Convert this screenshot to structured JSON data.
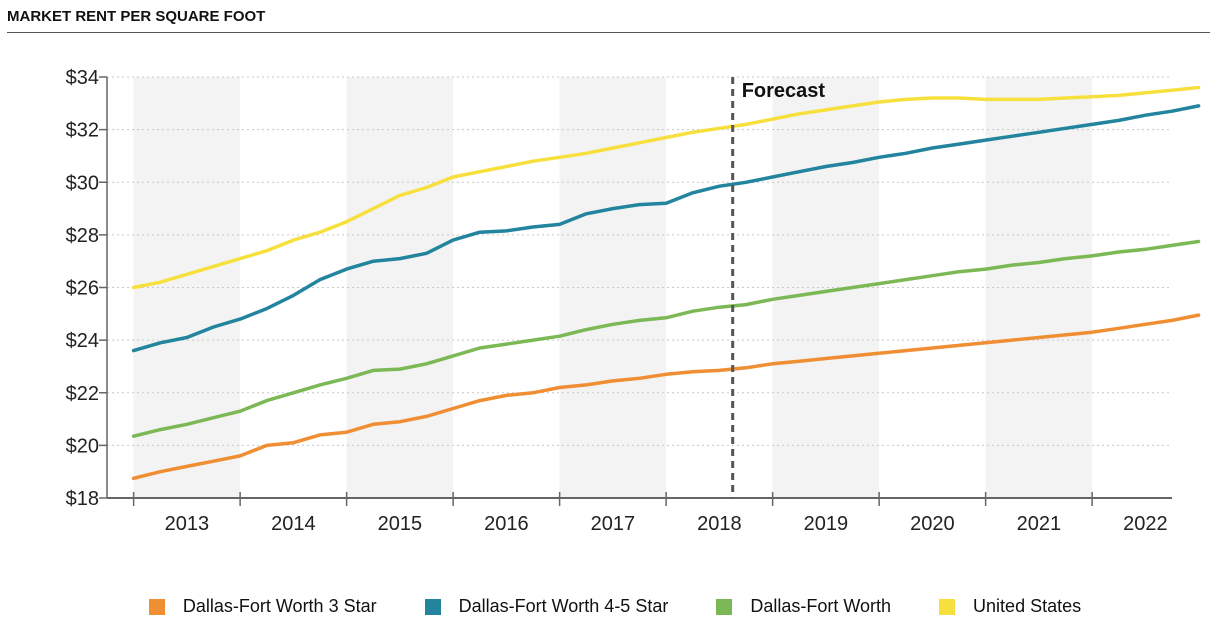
{
  "title": "MARKET RENT PER SQUARE FOOT",
  "chart_data": {
    "type": "line",
    "title": "MARKET RENT PER SQUARE FOOT",
    "xlabel": "",
    "ylabel": "",
    "ylim": [
      18,
      34
    ],
    "y_ticks": [
      "$18",
      "$20",
      "$22",
      "$24",
      "$26",
      "$28",
      "$30",
      "$32",
      "$34"
    ],
    "y_tick_values": [
      18,
      20,
      22,
      24,
      26,
      28,
      30,
      32,
      34
    ],
    "year_labels": [
      "2013",
      "2014",
      "2015",
      "2016",
      "2017",
      "2018",
      "2019",
      "2020",
      "2021",
      "2022"
    ],
    "xlim": [
      2012.625,
      2022.625
    ],
    "forecast_label": "Forecast",
    "forecast_x": 2018.5,
    "legend_position": "bottom",
    "grid": "alternating year bands",
    "series": [
      {
        "name": "Dallas-Fort Worth 3 Star",
        "color": "#f08e34",
        "points": [
          [
            2012.875,
            18.75
          ],
          [
            2013.125,
            19.0
          ],
          [
            2013.375,
            19.2
          ],
          [
            2013.625,
            19.4
          ],
          [
            2013.875,
            19.6
          ],
          [
            2014.125,
            20.0
          ],
          [
            2014.375,
            20.1
          ],
          [
            2014.625,
            20.4
          ],
          [
            2014.875,
            20.5
          ],
          [
            2015.125,
            20.8
          ],
          [
            2015.375,
            20.9
          ],
          [
            2015.625,
            21.1
          ],
          [
            2015.875,
            21.4
          ],
          [
            2016.125,
            21.7
          ],
          [
            2016.375,
            21.9
          ],
          [
            2016.625,
            22.0
          ],
          [
            2016.875,
            22.2
          ],
          [
            2017.125,
            22.3
          ],
          [
            2017.375,
            22.45
          ],
          [
            2017.625,
            22.55
          ],
          [
            2017.875,
            22.7
          ],
          [
            2018.125,
            22.8
          ],
          [
            2018.375,
            22.85
          ],
          [
            2018.625,
            22.95
          ],
          [
            2018.875,
            23.1
          ],
          [
            2019.125,
            23.2
          ],
          [
            2019.375,
            23.3
          ],
          [
            2019.625,
            23.4
          ],
          [
            2019.875,
            23.5
          ],
          [
            2020.125,
            23.6
          ],
          [
            2020.375,
            23.7
          ],
          [
            2020.625,
            23.8
          ],
          [
            2020.875,
            23.9
          ],
          [
            2021.125,
            24.0
          ],
          [
            2021.375,
            24.1
          ],
          [
            2021.625,
            24.2
          ],
          [
            2021.875,
            24.3
          ],
          [
            2022.125,
            24.45
          ],
          [
            2022.375,
            24.6
          ],
          [
            2022.625,
            24.75
          ],
          [
            2022.875,
            24.95
          ]
        ]
      },
      {
        "name": "Dallas-Fort Worth 4-5 Star",
        "color": "#23849e",
        "points": [
          [
            2012.875,
            23.6
          ],
          [
            2013.125,
            23.9
          ],
          [
            2013.375,
            24.1
          ],
          [
            2013.625,
            24.5
          ],
          [
            2013.875,
            24.8
          ],
          [
            2014.125,
            25.2
          ],
          [
            2014.375,
            25.7
          ],
          [
            2014.625,
            26.3
          ],
          [
            2014.875,
            26.7
          ],
          [
            2015.125,
            27.0
          ],
          [
            2015.375,
            27.1
          ],
          [
            2015.625,
            27.3
          ],
          [
            2015.875,
            27.8
          ],
          [
            2016.125,
            28.1
          ],
          [
            2016.375,
            28.15
          ],
          [
            2016.625,
            28.3
          ],
          [
            2016.875,
            28.4
          ],
          [
            2017.125,
            28.8
          ],
          [
            2017.375,
            29.0
          ],
          [
            2017.625,
            29.15
          ],
          [
            2017.875,
            29.2
          ],
          [
            2018.125,
            29.6
          ],
          [
            2018.375,
            29.85
          ],
          [
            2018.625,
            30.0
          ],
          [
            2018.875,
            30.2
          ],
          [
            2019.125,
            30.4
          ],
          [
            2019.375,
            30.6
          ],
          [
            2019.625,
            30.75
          ],
          [
            2019.875,
            30.95
          ],
          [
            2020.125,
            31.1
          ],
          [
            2020.375,
            31.3
          ],
          [
            2020.625,
            31.45
          ],
          [
            2020.875,
            31.6
          ],
          [
            2021.125,
            31.75
          ],
          [
            2021.375,
            31.9
          ],
          [
            2021.625,
            32.05
          ],
          [
            2021.875,
            32.2
          ],
          [
            2022.125,
            32.35
          ],
          [
            2022.375,
            32.55
          ],
          [
            2022.625,
            32.7
          ],
          [
            2022.875,
            32.9
          ]
        ]
      },
      {
        "name": "Dallas-Fort Worth",
        "color": "#7cb956",
        "points": [
          [
            2012.875,
            20.35
          ],
          [
            2013.125,
            20.6
          ],
          [
            2013.375,
            20.8
          ],
          [
            2013.625,
            21.05
          ],
          [
            2013.875,
            21.3
          ],
          [
            2014.125,
            21.7
          ],
          [
            2014.375,
            22.0
          ],
          [
            2014.625,
            22.3
          ],
          [
            2014.875,
            22.55
          ],
          [
            2015.125,
            22.85
          ],
          [
            2015.375,
            22.9
          ],
          [
            2015.625,
            23.1
          ],
          [
            2015.875,
            23.4
          ],
          [
            2016.125,
            23.7
          ],
          [
            2016.375,
            23.85
          ],
          [
            2016.625,
            24.0
          ],
          [
            2016.875,
            24.15
          ],
          [
            2017.125,
            24.4
          ],
          [
            2017.375,
            24.6
          ],
          [
            2017.625,
            24.75
          ],
          [
            2017.875,
            24.85
          ],
          [
            2018.125,
            25.1
          ],
          [
            2018.375,
            25.25
          ],
          [
            2018.625,
            25.35
          ],
          [
            2018.875,
            25.55
          ],
          [
            2019.125,
            25.7
          ],
          [
            2019.375,
            25.85
          ],
          [
            2019.625,
            26.0
          ],
          [
            2019.875,
            26.15
          ],
          [
            2020.125,
            26.3
          ],
          [
            2020.375,
            26.45
          ],
          [
            2020.625,
            26.6
          ],
          [
            2020.875,
            26.7
          ],
          [
            2021.125,
            26.85
          ],
          [
            2021.375,
            26.95
          ],
          [
            2021.625,
            27.1
          ],
          [
            2021.875,
            27.2
          ],
          [
            2022.125,
            27.35
          ],
          [
            2022.375,
            27.45
          ],
          [
            2022.625,
            27.6
          ],
          [
            2022.875,
            27.75
          ]
        ]
      },
      {
        "name": "United States",
        "color": "#f7e03e",
        "points": [
          [
            2012.875,
            26.0
          ],
          [
            2013.125,
            26.2
          ],
          [
            2013.375,
            26.5
          ],
          [
            2013.625,
            26.8
          ],
          [
            2013.875,
            27.1
          ],
          [
            2014.125,
            27.4
          ],
          [
            2014.375,
            27.8
          ],
          [
            2014.625,
            28.1
          ],
          [
            2014.875,
            28.5
          ],
          [
            2015.125,
            29.0
          ],
          [
            2015.375,
            29.5
          ],
          [
            2015.625,
            29.8
          ],
          [
            2015.875,
            30.2
          ],
          [
            2016.125,
            30.4
          ],
          [
            2016.375,
            30.6
          ],
          [
            2016.625,
            30.8
          ],
          [
            2016.875,
            30.95
          ],
          [
            2017.125,
            31.1
          ],
          [
            2017.375,
            31.3
          ],
          [
            2017.625,
            31.5
          ],
          [
            2017.875,
            31.7
          ],
          [
            2018.125,
            31.9
          ],
          [
            2018.375,
            32.05
          ],
          [
            2018.625,
            32.2
          ],
          [
            2018.875,
            32.4
          ],
          [
            2019.125,
            32.6
          ],
          [
            2019.375,
            32.75
          ],
          [
            2019.625,
            32.9
          ],
          [
            2019.875,
            33.05
          ],
          [
            2020.125,
            33.15
          ],
          [
            2020.375,
            33.2
          ],
          [
            2020.625,
            33.2
          ],
          [
            2020.875,
            33.15
          ],
          [
            2021.125,
            33.15
          ],
          [
            2021.375,
            33.15
          ],
          [
            2021.625,
            33.2
          ],
          [
            2021.875,
            33.25
          ],
          [
            2022.125,
            33.3
          ],
          [
            2022.375,
            33.4
          ],
          [
            2022.625,
            33.5
          ],
          [
            2022.875,
            33.6
          ]
        ]
      }
    ]
  }
}
